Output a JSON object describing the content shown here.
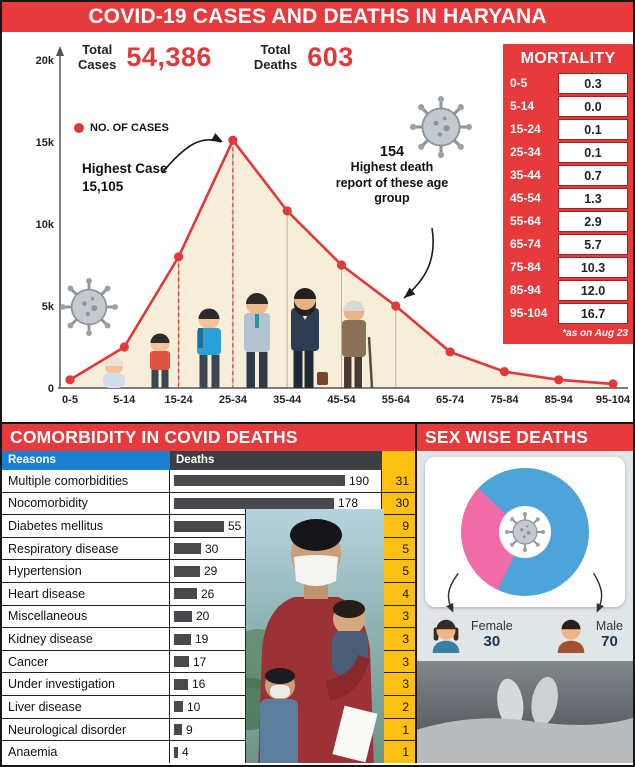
{
  "header": {
    "title": "COVID-19 CASES AND DEATHS IN HARYANA"
  },
  "stats": {
    "total_cases_label": "Total\nCases",
    "total_cases_value": "54,386",
    "total_deaths_label": "Total\nDeaths",
    "total_deaths_value": "603"
  },
  "chart_data": {
    "type": "line",
    "legend": "NO. OF CASES",
    "categories": [
      "0-5",
      "5-14",
      "15-24",
      "25-34",
      "35-44",
      "45-54",
      "55-64",
      "65-74",
      "75-84",
      "85-94",
      "95-104"
    ],
    "values": [
      500,
      2500,
      8000,
      15105,
      10800,
      7500,
      5000,
      2200,
      1000,
      500,
      250
    ],
    "ylim": [
      0,
      20000
    ],
    "yticks": [
      "0",
      "5k",
      "10k",
      "15k",
      "20k"
    ],
    "line_color": "#e0393b",
    "fill_color": "#f6eed8",
    "annotations": {
      "highest_case": "Highest Case\n15,105",
      "highest_death_value": "154",
      "highest_death_label": "Highest death report of these age group"
    }
  },
  "mortality": {
    "title": "MORTALITY",
    "rows": [
      [
        "0-5",
        "0.3"
      ],
      [
        "5-14",
        "0.0"
      ],
      [
        "15-24",
        "0.1"
      ],
      [
        "25-34",
        "0.1"
      ],
      [
        "35-44",
        "0.7"
      ],
      [
        "45-54",
        "1.3"
      ],
      [
        "55-64",
        "2.9"
      ],
      [
        "65-74",
        "5.7"
      ],
      [
        "75-84",
        "10.3"
      ],
      [
        "85-94",
        "12.0"
      ],
      [
        "95-104",
        "16.7"
      ]
    ],
    "footnote": "*as on Aug 23"
  },
  "comorbidity": {
    "title": "COMORBIDITY IN COVID DEATHS",
    "col_reasons": "Reasons",
    "col_deaths": "Deaths",
    "col_pct": "",
    "rows": [
      {
        "reason": "Multiple comorbidities",
        "deaths": 190,
        "pct": 31
      },
      {
        "reason": "Nocomorbidity",
        "deaths": 178,
        "pct": 30
      },
      {
        "reason": "Diabetes mellitus",
        "deaths": 55,
        "pct": 9
      },
      {
        "reason": "Respiratory disease",
        "deaths": 30,
        "pct": 5
      },
      {
        "reason": "Hypertension",
        "deaths": 29,
        "pct": 5
      },
      {
        "reason": "Heart disease",
        "deaths": 26,
        "pct": 4
      },
      {
        "reason": "Miscellaneous",
        "deaths": 20,
        "pct": 3
      },
      {
        "reason": "Kidney disease",
        "deaths": 19,
        "pct": 3
      },
      {
        "reason": "Cancer",
        "deaths": 17,
        "pct": 3
      },
      {
        "reason": "Under investigation",
        "deaths": 16,
        "pct": 3
      },
      {
        "reason": "Liver disease",
        "deaths": 10,
        "pct": 2
      },
      {
        "reason": "Neurological disorder",
        "deaths": 9,
        "pct": 1
      },
      {
        "reason": "Anaemia",
        "deaths": 4,
        "pct": 1
      }
    ]
  },
  "sex_deaths": {
    "title": "SEX WISE DEATHS",
    "female_label": "Female",
    "female_value": "30",
    "male_label": "Male",
    "male_value": "70",
    "female_color": "#f06ba8",
    "male_color": "#4da4d9"
  }
}
